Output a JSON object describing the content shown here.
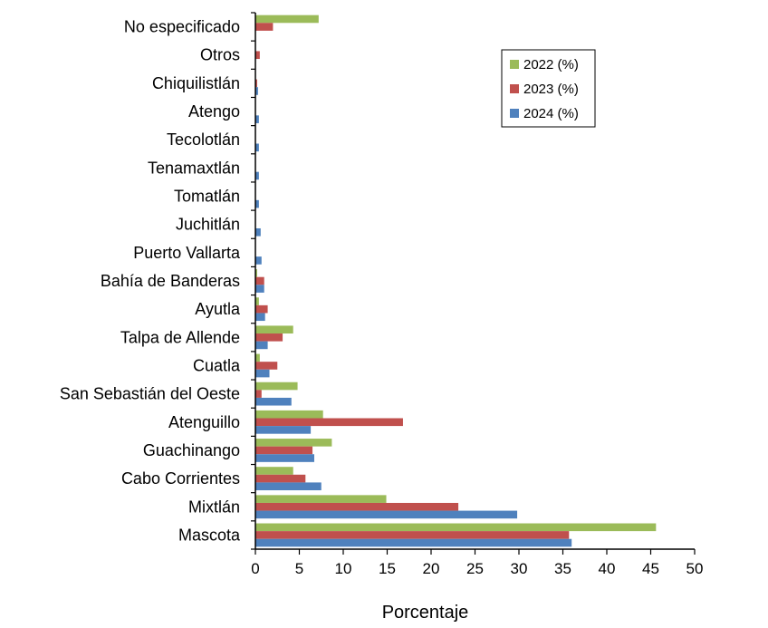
{
  "chart_data": {
    "type": "bar",
    "orientation": "horizontal",
    "categories": [
      "No especificado",
      "Otros",
      "Chiquilistlán",
      "Atengo",
      "Tecolotlán",
      "Tenamaxtlán",
      "Tomatlán",
      "Juchitlán",
      "Puerto Vallarta",
      "Bahía de Banderas",
      "Ayutla",
      "Talpa de Allende",
      "Cuatla",
      "San Sebastián del Oeste",
      "Atenguillo",
      "Guachinango",
      "Cabo Corrientes",
      "Mixtlán",
      "Mascota"
    ],
    "series": [
      {
        "name": "2022 (%)",
        "color": "#9BBB59",
        "values": [
          7.2,
          0,
          0,
          0,
          0,
          0,
          0,
          0,
          0,
          0.2,
          0.4,
          4.3,
          0.5,
          4.8,
          7.7,
          8.7,
          4.3,
          14.9,
          45.6
        ]
      },
      {
        "name": "2023 (%)",
        "color": "#C0504D",
        "values": [
          2.0,
          0.5,
          0.2,
          0,
          0,
          0,
          0,
          0,
          0,
          1.0,
          1.4,
          3.1,
          2.5,
          0.7,
          16.8,
          6.5,
          5.7,
          23.1,
          35.7
        ]
      },
      {
        "name": "2024 (%)",
        "color": "#4F81BD",
        "values": [
          0,
          0,
          0.3,
          0.4,
          0.4,
          0.4,
          0.4,
          0.6,
          0.7,
          1.0,
          1.1,
          1.4,
          1.6,
          4.1,
          6.3,
          6.7,
          7.5,
          29.8,
          36.0
        ]
      }
    ],
    "xlabel": "Porcentaje",
    "ylabel": "",
    "title": "",
    "xlim": [
      0,
      50
    ],
    "xticks": [
      "0",
      "5",
      "10",
      "15",
      "20",
      "25",
      "30",
      "35",
      "40",
      "45",
      "50"
    ],
    "grid": false,
    "legend_position": "top-right"
  }
}
